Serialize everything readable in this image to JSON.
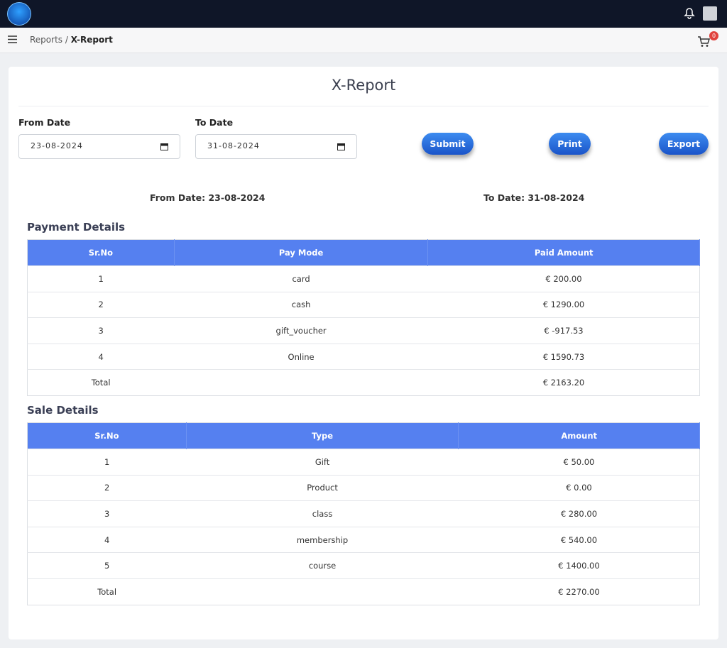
{
  "breadcrumb": {
    "items": [
      "Reports",
      "X-Report"
    ],
    "separator": "/"
  },
  "cart_count": 0,
  "title": "X-Report",
  "filters": {
    "from_label": "From Date",
    "from_value": "23-08-2024",
    "to_label": "To Date",
    "to_value": "31-08-2024"
  },
  "buttons": [
    "Submit",
    "Print",
    "Export"
  ],
  "summary": {
    "from": "From Date: 23-08-2024",
    "to": "To Date: 31-08-2024"
  },
  "payment": {
    "title": "Payment Details",
    "headers": [
      "Sr.No",
      "Pay Mode",
      "Paid Amount"
    ],
    "rows": [
      [
        "1",
        "card",
        "€ 200.00"
      ],
      [
        "2",
        "cash",
        "€ 1290.00"
      ],
      [
        "3",
        "gift_voucher",
        "€ -917.53"
      ],
      [
        "4",
        "Online",
        "€ 1590.73"
      ],
      [
        "Total",
        "",
        "€ 2163.20"
      ]
    ]
  },
  "sale": {
    "title": "Sale Details",
    "headers": [
      "Sr.No",
      "Type",
      "Amount"
    ],
    "rows": [
      [
        "1",
        "Gift",
        "€ 50.00"
      ],
      [
        "2",
        "Product",
        "€ 0.00"
      ],
      [
        "3",
        "class",
        "€ 280.00"
      ],
      [
        "4",
        "membership",
        "€ 540.00"
      ],
      [
        "5",
        "course",
        "€ 1400.00"
      ],
      [
        "Total",
        "",
        "€ 2270.00"
      ]
    ]
  }
}
